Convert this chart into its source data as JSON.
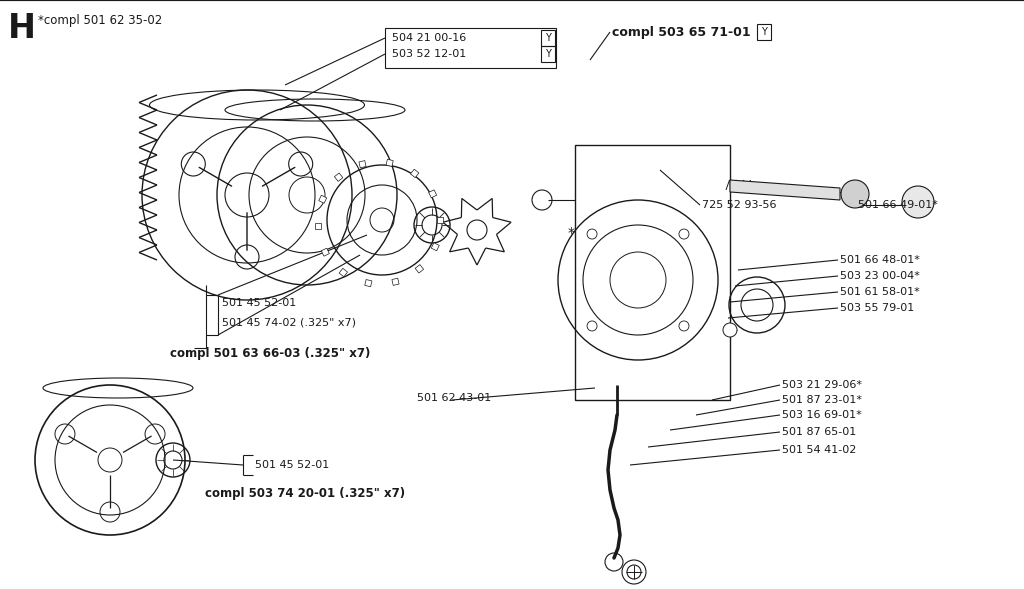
{
  "bg_color": "#ffffff",
  "lc": "#1a1a1a",
  "tc": "#1a1a1a",
  "figsize": [
    10.24,
    5.89
  ],
  "dpi": 100,
  "labels": {
    "H": "H",
    "compl_501_62_35_02": "*compl 501 62 35-02",
    "504_21_00_16": "504 21 00-16",
    "503_52_12_01": "503 52 12-01",
    "compl_503_65_71_01": "compl 503 65 71-01",
    "Y1": "Y",
    "Y2": "Y",
    "Y3": "Y",
    "725_52_93_56": "725 52 93-56",
    "star": "*",
    "501_66_49_01": "501 66 49-01*",
    "501_66_48_01": "501 66 48-01*",
    "503_23_00_04": "503 23 00-04*",
    "501_61_58_01": "501 61 58-01*",
    "503_55_79_01": "503 55 79-01",
    "503_21_29_06": "503 21 29-06*",
    "501_87_23_01": "501 87 23-01*",
    "503_16_69_01": "503 16 69-01*",
    "501_87_65_01": "501 87 65-01",
    "501_54_41_02": "501 54 41-02",
    "501_45_52_01_top": "501 45 52-01",
    "501_45_74_02": "501 45 74-02 (.325\" x7)",
    "compl_501_63_66_03": "compl 501 63 66-03 (.325\" x7)",
    "501_62_43_01": "501 62 43-01",
    "501_45_52_01_bot": "501 45 52-01",
    "compl_503_74_20_01": "compl 503 74 20-01 (.325\" x7)"
  }
}
